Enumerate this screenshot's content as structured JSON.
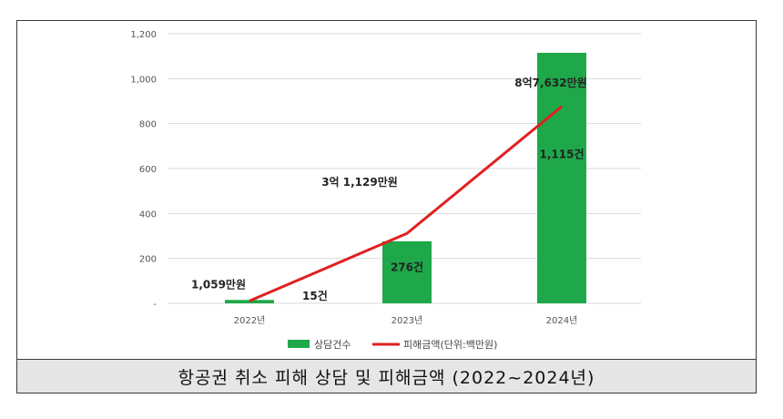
{
  "caption": "항공권 취소 피해 상담 및 피해금액 (2022~2024년)",
  "colors": {
    "bar": "#1ea84a",
    "line": "#e02020",
    "grid": "#d9d9d9"
  },
  "chart_data": {
    "type": "bar",
    "categories": [
      "2022년",
      "2023년",
      "2024년"
    ],
    "ylim": [
      0,
      1200
    ],
    "yticks": [
      {
        "value": 0,
        "label": "-"
      },
      {
        "value": 200,
        "label": "200"
      },
      {
        "value": 400,
        "label": "400"
      },
      {
        "value": 600,
        "label": "600"
      },
      {
        "value": 800,
        "label": "800"
      },
      {
        "value": 1000,
        "label": "1,000"
      },
      {
        "value": 1200,
        "label": "1,200"
      }
    ],
    "grid": true,
    "legend_position": "bottom",
    "series": [
      {
        "name": "상담건수",
        "kind": "bar",
        "values": [
          15,
          276,
          1115
        ],
        "labels": [
          "15건",
          "276건",
          "1,115건"
        ]
      },
      {
        "name": "피해금액(단위:백만원)",
        "kind": "line",
        "values": [
          10.59,
          311.29,
          876.32
        ],
        "labels": [
          "1,059만원",
          "3억 1,129만원",
          "8억7,632만원"
        ]
      }
    ]
  }
}
